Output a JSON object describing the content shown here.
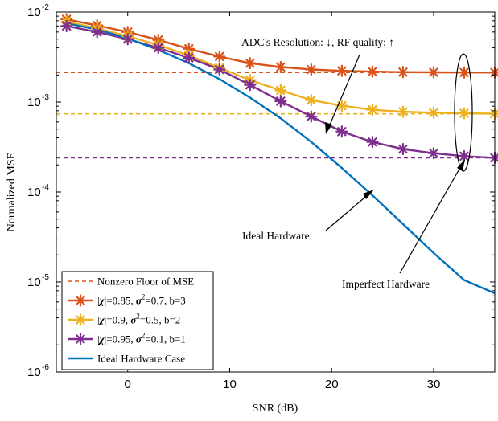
{
  "chart_data": {
    "type": "line",
    "xlabel": "SNR (dB)",
    "ylabel": "Normalized MSE",
    "xlim": [
      -7,
      36
    ],
    "ylim": [
      1e-06,
      0.01
    ],
    "yscale": "log",
    "xticks": [
      0,
      10,
      20,
      30
    ],
    "xtick_labels": [
      "0",
      "10",
      "20",
      "30"
    ],
    "yticks": [
      1e-06,
      1e-05,
      0.0001,
      0.001,
      0.01
    ],
    "ytick_labels": [
      {
        "base": "10",
        "exp": "-6"
      },
      {
        "base": "10",
        "exp": "-5"
      },
      {
        "base": "10",
        "exp": "-4"
      },
      {
        "base": "10",
        "exp": "-3"
      },
      {
        "base": "10",
        "exp": "-2"
      }
    ],
    "grid": false,
    "legend_position": "bottom-left",
    "x": [
      -6,
      -3,
      0,
      3,
      6,
      9,
      12,
      15,
      18,
      21,
      24,
      27,
      30,
      33,
      36
    ],
    "series": [
      {
        "key": "r3",
        "color": "#D95319",
        "marker": "asterisk",
        "values": [
          0.0083,
          0.0071,
          0.006,
          0.0049,
          0.0039,
          0.0032,
          0.0027,
          0.00245,
          0.0023,
          0.00222,
          0.00218,
          0.00215,
          0.00214,
          0.00213,
          0.00213
        ]
      },
      {
        "key": "r2",
        "color": "#EDB120",
        "marker": "asterisk",
        "values": [
          0.0078,
          0.0066,
          0.0054,
          0.0043,
          0.0033,
          0.0024,
          0.00175,
          0.00135,
          0.00105,
          0.00091,
          0.00082,
          0.00078,
          0.00076,
          0.00075,
          0.00074
        ]
      },
      {
        "key": "r1",
        "color": "#7E2F8E",
        "marker": "asterisk",
        "values": [
          0.007,
          0.006,
          0.005,
          0.004,
          0.0031,
          0.0023,
          0.00155,
          0.00102,
          0.00069,
          0.00047,
          0.00036,
          0.0003,
          0.00027,
          0.00025,
          0.00024
        ]
      },
      {
        "key": "ideal",
        "color": "#0072BD",
        "marker": "none",
        "x": [
          -6,
          -3,
          0,
          3,
          6,
          9,
          12,
          15,
          18,
          21,
          24,
          27,
          30,
          33,
          36
        ],
        "values": [
          0.0075,
          0.0064,
          0.0051,
          0.0038,
          0.0027,
          0.0018,
          0.00112,
          0.00066,
          0.00036,
          0.000185,
          9.2e-05,
          4.4e-05,
          2.1e-05,
          1.05e-05,
          7.5e-06
        ]
      }
    ],
    "floors": [
      {
        "value": 0.00213,
        "color": "#D95319"
      },
      {
        "value": 0.00074,
        "color": "#EDB120"
      },
      {
        "value": 0.00024,
        "color": "#7E2F8E"
      }
    ],
    "legend": [
      {
        "kind": "dashed",
        "color": "#D95319",
        "label": "Nonzero Floor of MSE"
      },
      {
        "kind": "marker",
        "color": "#D95319",
        "chi": "0.85",
        "sigma": "0.7",
        "b": "3"
      },
      {
        "kind": "marker",
        "color": "#EDB120",
        "chi": "0.9",
        "sigma": "0.5",
        "b": "2"
      },
      {
        "kind": "marker",
        "color": "#7E2F8E",
        "chi": "0.95",
        "sigma": "0.1",
        "b": "1"
      },
      {
        "kind": "line",
        "color": "#0072BD",
        "label": "Ideal Hardware Case"
      }
    ],
    "annotations": {
      "trend": "ADC's Resolution: ↓, RF quality: ↑",
      "ideal": "Ideal Hardware",
      "imperfect": "Imperfect Hardware"
    }
  }
}
